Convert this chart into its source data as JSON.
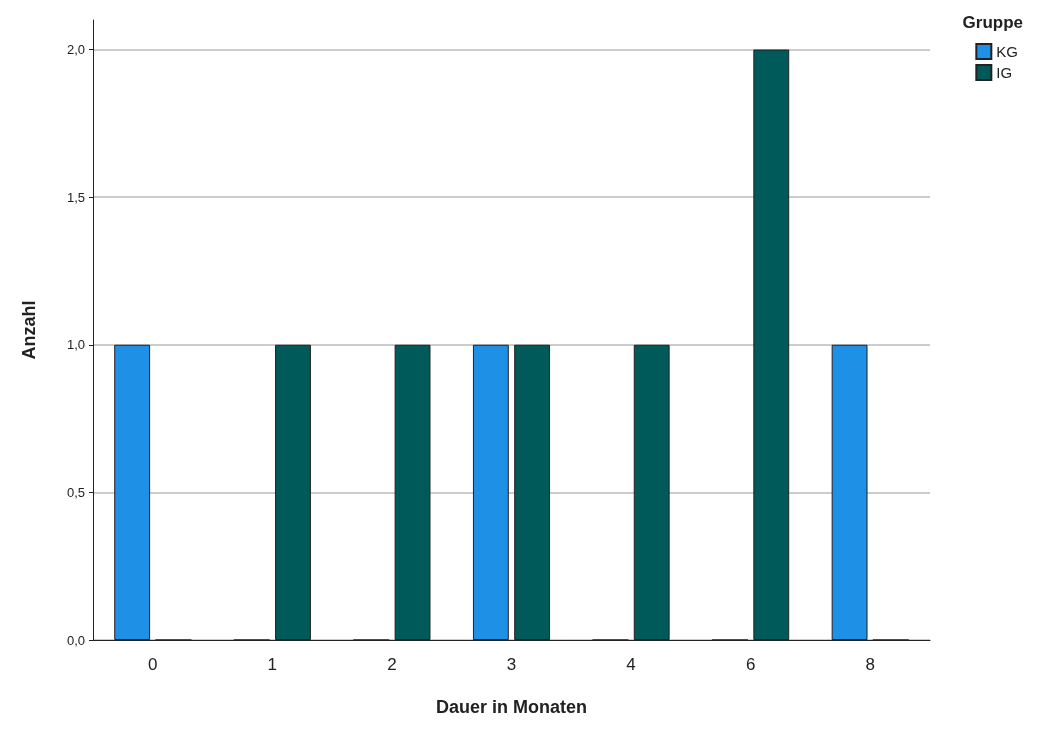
{
  "chart_data": {
    "type": "bar",
    "xlabel": "Dauer in Monaten",
    "ylabel": "Anzahl",
    "legend_title": "Gruppe",
    "categories": [
      "0",
      "1",
      "2",
      "3",
      "4",
      "6",
      "8"
    ],
    "series": [
      {
        "name": "KG",
        "color": "#1e90e6",
        "values": [
          1,
          0,
          0,
          1,
          0,
          0,
          1
        ]
      },
      {
        "name": "IG",
        "color": "#005a5a",
        "values": [
          0,
          1,
          1,
          1,
          1,
          2,
          0
        ]
      }
    ],
    "ylim": [
      0,
      2.1
    ],
    "yticks": [
      {
        "value": 0,
        "label": "0,0"
      },
      {
        "value": 0.5,
        "label": "0,5"
      },
      {
        "value": 1,
        "label": "1,0"
      },
      {
        "value": 1.5,
        "label": "1,5"
      },
      {
        "value": 2,
        "label": "2,0"
      }
    ],
    "grid": "y",
    "legend": "top right"
  }
}
